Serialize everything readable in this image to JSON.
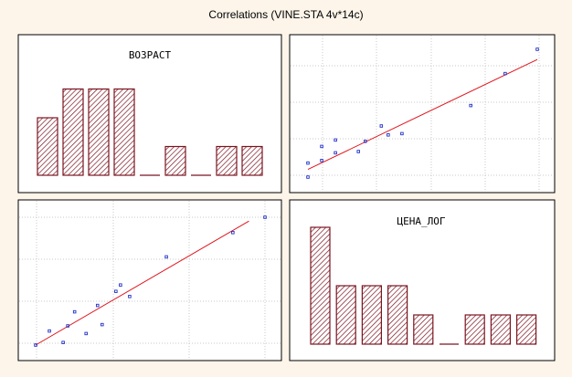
{
  "window": {
    "title": "Correlations (VINE.STA 4v*14c)"
  },
  "chart_data": {
    "type": "scatter-matrix",
    "title": "Correlations (VINE.STA 4v*14c)",
    "variables": [
      "ВОЗРАСТ",
      "ЦЕНА_ЛОГ"
    ],
    "colors": {
      "bar": "#7a1420",
      "points": "#1f2fc9",
      "fit_line": "#e0131b",
      "grid": "#c8c8c8"
    },
    "grid": true,
    "panels": [
      {
        "id": "histogram-vozrast",
        "type": "bar",
        "label": "ВОЗРАСТ",
        "values": [
          2,
          3,
          3,
          3,
          0,
          1,
          0,
          1,
          1
        ]
      },
      {
        "id": "scatter-vozrast-cena",
        "type": "scatter",
        "xlim": [
          0,
          1
        ],
        "ylim": [
          0,
          1
        ],
        "points": [
          [
            0.0,
            0.0
          ],
          [
            0.0,
            0.11
          ],
          [
            0.06,
            0.13
          ],
          [
            0.06,
            0.24
          ],
          [
            0.12,
            0.19
          ],
          [
            0.12,
            0.29
          ],
          [
            0.22,
            0.2
          ],
          [
            0.25,
            0.28
          ],
          [
            0.32,
            0.4
          ],
          [
            0.35,
            0.33
          ],
          [
            0.41,
            0.34
          ],
          [
            0.71,
            0.56
          ],
          [
            0.86,
            0.81
          ],
          [
            1.0,
            1.0
          ]
        ],
        "fit": [
          [
            0.0,
            0.06
          ],
          [
            1.0,
            0.92
          ]
        ]
      },
      {
        "id": "scatter-cena-vozrast",
        "type": "scatter",
        "xlim": [
          0,
          1
        ],
        "ylim": [
          0,
          1
        ],
        "points": [
          [
            0.0,
            0.0
          ],
          [
            0.06,
            0.11
          ],
          [
            0.12,
            0.02
          ],
          [
            0.14,
            0.15
          ],
          [
            0.17,
            0.26
          ],
          [
            0.22,
            0.09
          ],
          [
            0.27,
            0.31
          ],
          [
            0.29,
            0.16
          ],
          [
            0.35,
            0.42
          ],
          [
            0.37,
            0.47
          ],
          [
            0.41,
            0.38
          ],
          [
            0.57,
            0.69
          ],
          [
            0.86,
            0.88
          ],
          [
            1.0,
            1.0
          ]
        ],
        "fit": [
          [
            0.0,
            0.0
          ],
          [
            0.93,
            0.97
          ]
        ]
      },
      {
        "id": "histogram-cena-log",
        "type": "bar",
        "label": "ЦЕНА_ЛОГ",
        "values": [
          4,
          2,
          2,
          2,
          1,
          0,
          1,
          1,
          1
        ]
      }
    ]
  }
}
